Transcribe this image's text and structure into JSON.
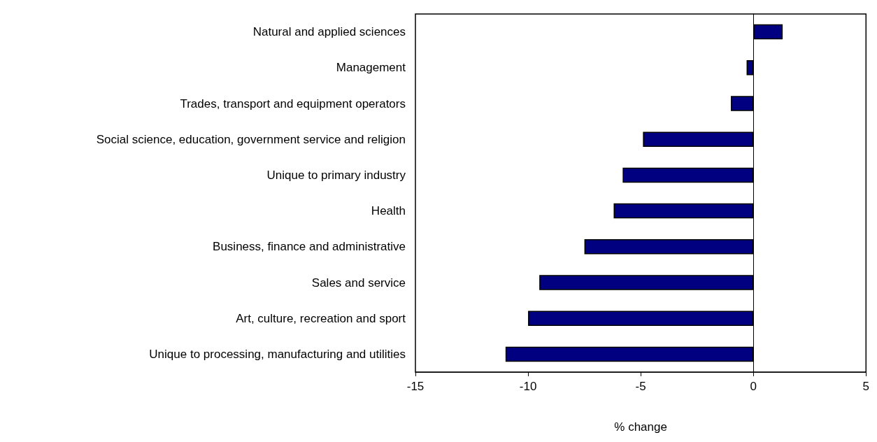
{
  "chart_data": {
    "type": "bar",
    "orientation": "horizontal",
    "xlabel": "% change",
    "categories": [
      "Natural and applied sciences",
      "Management",
      "Trades, transport and equipment operators",
      "Social science, education, government service and religion",
      "Unique to primary industry",
      "Health",
      "Business, finance and administrative",
      "Sales and service",
      "Art, culture, recreation and sport",
      "Unique to processing, manufacturing and utilities"
    ],
    "values": [
      1.3,
      -0.3,
      -1.0,
      -4.9,
      -5.8,
      -6.2,
      -7.5,
      -9.5,
      -10.0,
      -11.0
    ],
    "color": "#000080",
    "xlim": [
      -15,
      5
    ],
    "xticks": [
      -15,
      -10,
      -5,
      0,
      5
    ]
  }
}
